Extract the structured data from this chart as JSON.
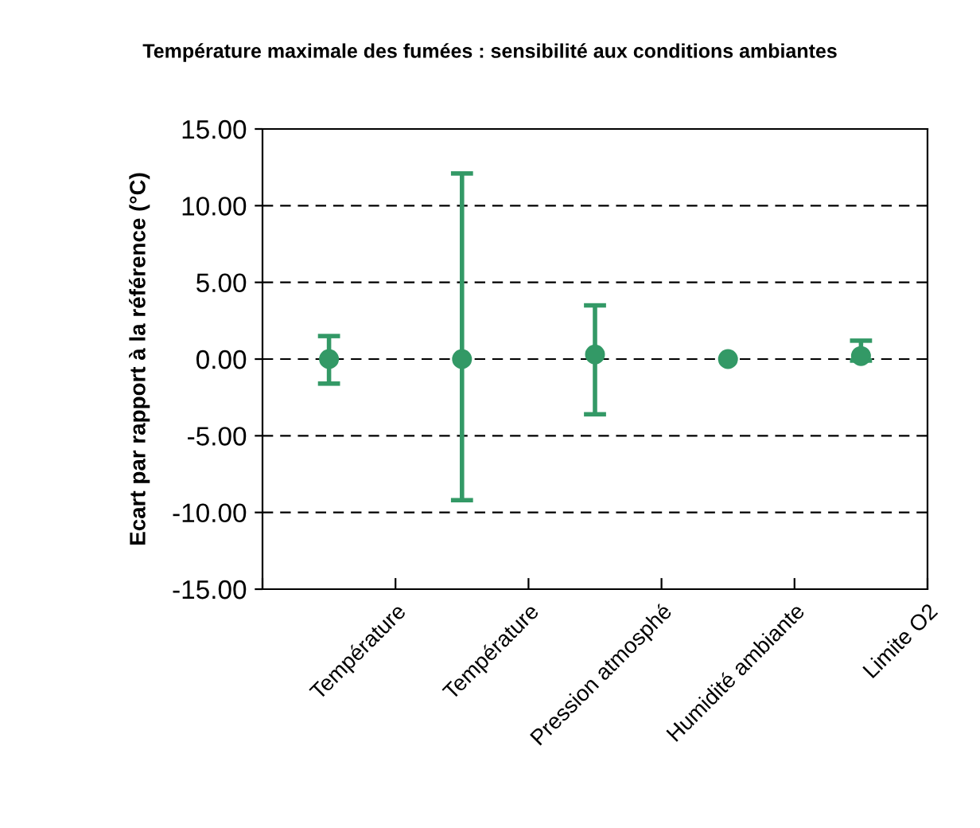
{
  "chart_data": {
    "type": "scatter",
    "title": "Température maximale des fumées : sensibilité aux conditions ambiantes",
    "ylabel": "Ecart par rapport à la référence (°C)",
    "categories": [
      "Température",
      "Température",
      "Pression atmosphé",
      "Humidité ambiante",
      "Limite O2"
    ],
    "series": [
      {
        "color": "#339966",
        "values": [
          0.0,
          0.0,
          0.3,
          0.0,
          0.2
        ],
        "errors": [
          [
            -1.6,
            1.5
          ],
          [
            -9.2,
            12.1
          ],
          [
            -3.6,
            3.5
          ],
          null,
          [
            -0.1,
            1.2
          ]
        ]
      }
    ],
    "ylim": [
      -15,
      15
    ],
    "yticks": [
      {
        "value": -15,
        "label": "-15.00"
      },
      {
        "value": -10,
        "label": "-10.00"
      },
      {
        "value": -5,
        "label": "-5.00"
      },
      {
        "value": 0,
        "label": "0.00"
      },
      {
        "value": 5,
        "label": "5.00"
      },
      {
        "value": 10,
        "label": "10.00"
      },
      {
        "value": 15,
        "label": "15.00"
      }
    ],
    "grid": "y",
    "marker": "circle"
  }
}
